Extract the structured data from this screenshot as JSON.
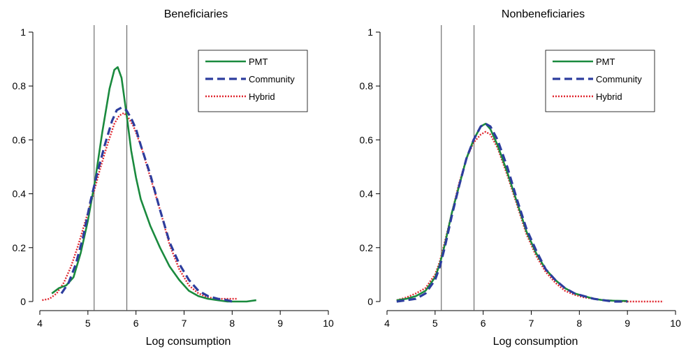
{
  "chart_data": [
    {
      "type": "line",
      "title": "Beneficiaries",
      "xlabel": "Log consumption",
      "ylabel": "",
      "xlim": [
        4,
        10
      ],
      "ylim": [
        0,
        1
      ],
      "xticks": [
        "4",
        "5",
        "6",
        "7",
        "8",
        "9",
        "10"
      ],
      "yticks": [
        "0",
        "0.2",
        "0.4",
        "0.6",
        "0.8",
        "1"
      ],
      "reference_lines_x": [
        5.13,
        5.81
      ],
      "legend_position": "top-right",
      "series": [
        {
          "name": "PMT",
          "color": "#1a8a3e",
          "style": "solid",
          "x": [
            4.25,
            4.4,
            4.55,
            4.7,
            4.85,
            5.0,
            5.15,
            5.3,
            5.45,
            5.55,
            5.62,
            5.7,
            5.8,
            5.9,
            6.0,
            6.1,
            6.3,
            6.5,
            6.7,
            6.9,
            7.1,
            7.3,
            7.5,
            7.7,
            7.9,
            8.1,
            8.3,
            8.5
          ],
          "y": [
            0.03,
            0.05,
            0.06,
            0.09,
            0.18,
            0.3,
            0.45,
            0.63,
            0.79,
            0.86,
            0.87,
            0.83,
            0.7,
            0.56,
            0.46,
            0.38,
            0.28,
            0.2,
            0.13,
            0.08,
            0.04,
            0.02,
            0.01,
            0.005,
            0.0,
            0.0,
            0.0,
            0.005
          ]
        },
        {
          "name": "Community",
          "color": "#2d3d9e",
          "style": "dashed",
          "x": [
            4.45,
            4.6,
            4.75,
            4.9,
            5.05,
            5.2,
            5.35,
            5.5,
            5.6,
            5.7,
            5.8,
            5.9,
            6.0,
            6.1,
            6.3,
            6.5,
            6.7,
            6.9,
            7.1,
            7.3,
            7.5,
            7.7,
            7.9,
            8.0
          ],
          "y": [
            0.03,
            0.07,
            0.14,
            0.24,
            0.37,
            0.48,
            0.58,
            0.67,
            0.71,
            0.72,
            0.71,
            0.68,
            0.64,
            0.58,
            0.47,
            0.34,
            0.22,
            0.14,
            0.08,
            0.04,
            0.02,
            0.01,
            0.005,
            0.0
          ]
        },
        {
          "name": "Hybrid",
          "color": "#e0262e",
          "style": "dotted",
          "x": [
            4.05,
            4.2,
            4.35,
            4.5,
            4.65,
            4.8,
            4.95,
            5.1,
            5.25,
            5.4,
            5.55,
            5.65,
            5.75,
            5.85,
            5.95,
            6.1,
            6.3,
            6.5,
            6.7,
            6.9,
            7.1,
            7.3,
            7.5,
            7.7,
            7.9,
            8.1
          ],
          "y": [
            0.005,
            0.01,
            0.03,
            0.07,
            0.13,
            0.21,
            0.3,
            0.39,
            0.49,
            0.58,
            0.66,
            0.69,
            0.7,
            0.68,
            0.65,
            0.58,
            0.46,
            0.34,
            0.21,
            0.12,
            0.06,
            0.03,
            0.015,
            0.01,
            0.01,
            0.01
          ]
        }
      ]
    },
    {
      "type": "line",
      "title": "Nonbeneficiaries",
      "xlabel": "Log consumption",
      "ylabel": "",
      "xlim": [
        4,
        10
      ],
      "ylim": [
        0,
        1
      ],
      "xticks": [
        "4",
        "5",
        "6",
        "7",
        "8",
        "9",
        "10"
      ],
      "yticks": [
        "0",
        "0.2",
        "0.4",
        "0.6",
        "0.8",
        "1"
      ],
      "reference_lines_x": [
        5.13,
        5.81
      ],
      "legend_position": "top-right",
      "series": [
        {
          "name": "PMT",
          "color": "#1a8a3e",
          "style": "solid",
          "x": [
            4.2,
            4.4,
            4.6,
            4.8,
            5.0,
            5.1,
            5.2,
            5.35,
            5.5,
            5.65,
            5.8,
            5.95,
            6.05,
            6.15,
            6.3,
            6.5,
            6.7,
            6.9,
            7.1,
            7.3,
            7.5,
            7.7,
            7.9,
            8.1,
            8.3,
            8.5,
            8.7,
            9.0
          ],
          "y": [
            0.005,
            0.01,
            0.02,
            0.04,
            0.09,
            0.14,
            0.21,
            0.33,
            0.43,
            0.53,
            0.6,
            0.65,
            0.66,
            0.64,
            0.58,
            0.48,
            0.37,
            0.26,
            0.18,
            0.12,
            0.08,
            0.05,
            0.03,
            0.02,
            0.01,
            0.005,
            0.003,
            0.002
          ]
        },
        {
          "name": "Community",
          "color": "#2d3d9e",
          "style": "dashed",
          "x": [
            4.2,
            4.4,
            4.6,
            4.8,
            5.0,
            5.1,
            5.2,
            5.35,
            5.5,
            5.65,
            5.8,
            5.95,
            6.05,
            6.15,
            6.3,
            6.5,
            6.7,
            6.9,
            7.1,
            7.3,
            7.5,
            7.7,
            7.9,
            8.1,
            8.3,
            8.5,
            8.7,
            9.0
          ],
          "y": [
            0.0,
            0.005,
            0.01,
            0.03,
            0.08,
            0.13,
            0.2,
            0.32,
            0.43,
            0.53,
            0.6,
            0.65,
            0.66,
            0.65,
            0.6,
            0.5,
            0.38,
            0.27,
            0.19,
            0.12,
            0.08,
            0.05,
            0.03,
            0.02,
            0.01,
            0.005,
            0.0,
            0.0
          ]
        },
        {
          "name": "Hybrid",
          "color": "#e0262e",
          "style": "dotted",
          "x": [
            4.2,
            4.4,
            4.6,
            4.8,
            5.0,
            5.1,
            5.2,
            5.35,
            5.5,
            5.65,
            5.8,
            5.95,
            6.05,
            6.15,
            6.3,
            6.5,
            6.7,
            6.9,
            7.1,
            7.3,
            7.5,
            7.7,
            7.9,
            8.1,
            8.3,
            8.5,
            8.7,
            9.0,
            9.4,
            9.75
          ],
          "y": [
            0.005,
            0.015,
            0.03,
            0.05,
            0.1,
            0.15,
            0.22,
            0.33,
            0.44,
            0.53,
            0.59,
            0.62,
            0.63,
            0.62,
            0.57,
            0.47,
            0.36,
            0.25,
            0.17,
            0.11,
            0.07,
            0.04,
            0.025,
            0.015,
            0.01,
            0.005,
            0.003,
            0.0,
            0.0,
            0.0
          ]
        }
      ]
    }
  ]
}
